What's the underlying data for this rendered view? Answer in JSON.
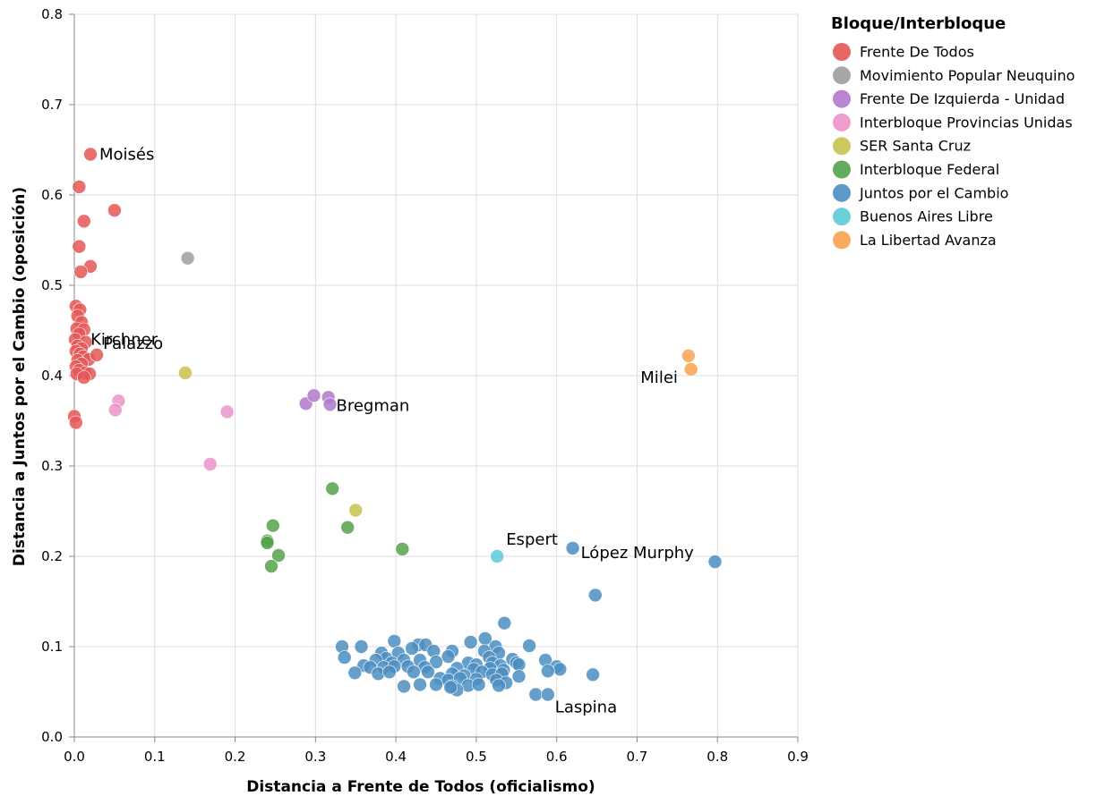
{
  "chart_data": {
    "type": "scatter",
    "xlabel": "Distancia a Frente de Todos (oficialismo)",
    "ylabel": "Distancia a Juntos por el Cambio (oposición)",
    "xlim": [
      0,
      0.9
    ],
    "ylim": [
      0,
      0.8
    ],
    "x_ticks": [
      "0.0",
      "0.1",
      "0.2",
      "0.3",
      "0.4",
      "0.5",
      "0.6",
      "0.7",
      "0.8",
      "0.9"
    ],
    "y_ticks": [
      "0.0",
      "0.1",
      "0.2",
      "0.3",
      "0.4",
      "0.5",
      "0.6",
      "0.7",
      "0.8"
    ],
    "grid": true,
    "legend": {
      "title": "Bloque/Interbloque",
      "placement": "right"
    },
    "series": [
      {
        "name": "Frente De Todos",
        "color": "#e45756",
        "points": [
          [
            0.02,
            0.645
          ],
          [
            0.006,
            0.609
          ],
          [
            0.05,
            0.583
          ],
          [
            0.012,
            0.571
          ],
          [
            0.006,
            0.543
          ],
          [
            0.02,
            0.521
          ],
          [
            0.008,
            0.515
          ],
          [
            0.002,
            0.477
          ],
          [
            0.007,
            0.473
          ],
          [
            0.004,
            0.466
          ],
          [
            0.009,
            0.459
          ],
          [
            0.003,
            0.452
          ],
          [
            0.012,
            0.451
          ],
          [
            0.006,
            0.446
          ],
          [
            0.001,
            0.44
          ],
          [
            0.014,
            0.437
          ],
          [
            0.004,
            0.433
          ],
          [
            0.009,
            0.43
          ],
          [
            0.002,
            0.427
          ],
          [
            0.007,
            0.424
          ],
          [
            0.011,
            0.421
          ],
          [
            0.018,
            0.418
          ],
          [
            0.028,
            0.423
          ],
          [
            0.004,
            0.417
          ],
          [
            0.009,
            0.413
          ],
          [
            0.002,
            0.41
          ],
          [
            0.006,
            0.406
          ],
          [
            0.013,
            0.403
          ],
          [
            0.019,
            0.402
          ],
          [
            0.003,
            0.402
          ],
          [
            0.012,
            0.398
          ],
          [
            0.0,
            0.355
          ],
          [
            0.002,
            0.348
          ]
        ]
      },
      {
        "name": "Movimiento Popular Neuquino",
        "color": "#9d9d9d",
        "points": [
          [
            0.141,
            0.53
          ]
        ]
      },
      {
        "name": "Frente De Izquierda - Unidad",
        "color": "#b279cc",
        "points": [
          [
            0.288,
            0.369
          ],
          [
            0.298,
            0.378
          ],
          [
            0.316,
            0.376
          ],
          [
            0.318,
            0.368
          ]
        ]
      },
      {
        "name": "Interbloque Provincias Unidas",
        "color": "#ec93c8",
        "points": [
          [
            0.055,
            0.372
          ],
          [
            0.051,
            0.362
          ],
          [
            0.19,
            0.36
          ],
          [
            0.169,
            0.302
          ]
        ]
      },
      {
        "name": "SER Santa Cruz",
        "color": "#c7c34c",
        "points": [
          [
            0.138,
            0.403
          ],
          [
            0.35,
            0.251
          ]
        ]
      },
      {
        "name": "Interbloque Federal",
        "color": "#54a24b",
        "points": [
          [
            0.321,
            0.275
          ],
          [
            0.247,
            0.234
          ],
          [
            0.34,
            0.232
          ],
          [
            0.24,
            0.217
          ],
          [
            0.24,
            0.215
          ],
          [
            0.254,
            0.201
          ],
          [
            0.245,
            0.189
          ],
          [
            0.408,
            0.208
          ]
        ]
      },
      {
        "name": "Juntos por el Cambio",
        "color": "#4c8ec2",
        "points": [
          [
            0.62,
            0.209
          ],
          [
            0.797,
            0.194
          ],
          [
            0.648,
            0.157
          ],
          [
            0.535,
            0.126
          ],
          [
            0.645,
            0.069
          ],
          [
            0.574,
            0.047
          ],
          [
            0.589,
            0.047
          ],
          [
            0.511,
            0.109
          ],
          [
            0.493,
            0.105
          ],
          [
            0.398,
            0.106
          ],
          [
            0.428,
            0.102
          ],
          [
            0.437,
            0.102
          ],
          [
            0.333,
            0.1
          ],
          [
            0.357,
            0.1
          ],
          [
            0.524,
            0.1
          ],
          [
            0.566,
            0.101
          ],
          [
            0.42,
            0.098
          ],
          [
            0.447,
            0.095
          ],
          [
            0.47,
            0.095
          ],
          [
            0.51,
            0.095
          ],
          [
            0.528,
            0.093
          ],
          [
            0.382,
            0.093
          ],
          [
            0.403,
            0.093
          ],
          [
            0.336,
            0.088
          ],
          [
            0.388,
            0.087
          ],
          [
            0.465,
            0.089
          ],
          [
            0.516,
            0.088
          ],
          [
            0.545,
            0.086
          ],
          [
            0.586,
            0.085
          ],
          [
            0.6,
            0.078
          ],
          [
            0.604,
            0.075
          ],
          [
            0.375,
            0.085
          ],
          [
            0.395,
            0.082
          ],
          [
            0.41,
            0.085
          ],
          [
            0.43,
            0.085
          ],
          [
            0.45,
            0.083
          ],
          [
            0.49,
            0.082
          ],
          [
            0.5,
            0.08
          ],
          [
            0.52,
            0.082
          ],
          [
            0.53,
            0.079
          ],
          [
            0.55,
            0.082
          ],
          [
            0.36,
            0.079
          ],
          [
            0.368,
            0.077
          ],
          [
            0.385,
            0.077
          ],
          [
            0.398,
            0.078
          ],
          [
            0.415,
            0.078
          ],
          [
            0.436,
            0.077
          ],
          [
            0.476,
            0.076
          ],
          [
            0.497,
            0.075
          ],
          [
            0.517,
            0.076
          ],
          [
            0.534,
            0.074
          ],
          [
            0.553,
            0.08
          ],
          [
            0.589,
            0.073
          ],
          [
            0.349,
            0.071
          ],
          [
            0.378,
            0.07
          ],
          [
            0.392,
            0.072
          ],
          [
            0.422,
            0.072
          ],
          [
            0.44,
            0.072
          ],
          [
            0.47,
            0.07
          ],
          [
            0.485,
            0.068
          ],
          [
            0.507,
            0.072
          ],
          [
            0.52,
            0.069
          ],
          [
            0.532,
            0.07
          ],
          [
            0.553,
            0.067
          ],
          [
            0.455,
            0.065
          ],
          [
            0.465,
            0.063
          ],
          [
            0.48,
            0.065
          ],
          [
            0.5,
            0.064
          ],
          [
            0.525,
            0.063
          ],
          [
            0.537,
            0.06
          ],
          [
            0.43,
            0.058
          ],
          [
            0.41,
            0.056
          ],
          [
            0.45,
            0.058
          ],
          [
            0.47,
            0.056
          ],
          [
            0.49,
            0.057
          ],
          [
            0.503,
            0.058
          ],
          [
            0.528,
            0.057
          ],
          [
            0.476,
            0.052
          ],
          [
            0.468,
            0.055
          ]
        ]
      },
      {
        "name": "Buenos Aires Libre",
        "color": "#5bcbd8",
        "points": [
          [
            0.526,
            0.2
          ]
        ]
      },
      {
        "name": "La Libertad Avanza",
        "color": "#f9a24f",
        "points": [
          [
            0.764,
            0.422
          ],
          [
            0.767,
            0.407
          ]
        ]
      }
    ],
    "annotations": [
      {
        "text": "Moisés",
        "x": 0.02,
        "y": 0.645,
        "dx": 10,
        "dy": 0,
        "anchor": "start"
      },
      {
        "text": "Kirchner",
        "x": 0.009,
        "y": 0.44,
        "dx": 10,
        "dy": 0,
        "anchor": "start"
      },
      {
        "text": "Palazzo",
        "x": 0.028,
        "y": 0.423,
        "dx": 7,
        "dy": -13,
        "anchor": "start"
      },
      {
        "text": "Bregman",
        "x": 0.318,
        "y": 0.368,
        "dx": 7,
        "dy": 1,
        "anchor": "start"
      },
      {
        "text": "Milei",
        "x": 0.764,
        "y": 0.407,
        "dx": -12,
        "dy": 9,
        "anchor": "end"
      },
      {
        "text": "Espert",
        "x": 0.526,
        "y": 0.2,
        "dx": 10,
        "dy": -19,
        "anchor": "start"
      },
      {
        "text": "López Murphy",
        "x": 0.62,
        "y": 0.209,
        "dx": 9,
        "dy": 5,
        "anchor": "start"
      },
      {
        "text": "Laspina",
        "x": 0.589,
        "y": 0.047,
        "dx": 8,
        "dy": 14,
        "anchor": "start"
      }
    ]
  }
}
